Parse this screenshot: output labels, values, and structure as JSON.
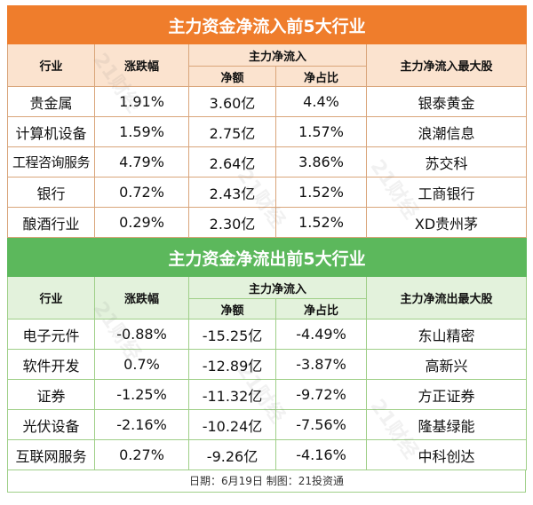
{
  "inflow": {
    "title": "主力资金净流入前5大行业",
    "headers": {
      "industry": "行业",
      "change": "涨跌幅",
      "group": "主力净流入",
      "net": "净额",
      "ratio": "净占比",
      "top_stock": "主力净流入最大股"
    },
    "rows": [
      {
        "industry": "贵金属",
        "change": "1.91%",
        "net": "3.60亿",
        "ratio": "4.4%",
        "stock": "银泰黄金"
      },
      {
        "industry": "计算机设备",
        "change": "1.59%",
        "net": "2.75亿",
        "ratio": "1.57%",
        "stock": "浪潮信息"
      },
      {
        "industry": "工程咨询服务",
        "change": "4.79%",
        "net": "2.64亿",
        "ratio": "3.86%",
        "stock": "苏交科"
      },
      {
        "industry": "银行",
        "change": "0.72%",
        "net": "2.43亿",
        "ratio": "1.52%",
        "stock": "工商银行"
      },
      {
        "industry": "酿酒行业",
        "change": "0.29%",
        "net": "2.30亿",
        "ratio": "1.52%",
        "stock": "XD贵州茅"
      }
    ]
  },
  "outflow": {
    "title": "主力资金净流出前5大行业",
    "headers": {
      "industry": "行业",
      "change": "涨跌幅",
      "group": "主力净流入",
      "net": "净额",
      "ratio": "净占比",
      "top_stock": "主力净流出最大股"
    },
    "rows": [
      {
        "industry": "电子元件",
        "change": "-0.88%",
        "net": "-15.25亿",
        "ratio": "-4.49%",
        "stock": "东山精密"
      },
      {
        "industry": "软件开发",
        "change": "0.7%",
        "net": "-12.89亿",
        "ratio": "-3.87%",
        "stock": "高新兴"
      },
      {
        "industry": "证券",
        "change": "-1.25%",
        "net": "-11.32亿",
        "ratio": "-9.72%",
        "stock": "方正证券"
      },
      {
        "industry": "光伏设备",
        "change": "-2.16%",
        "net": "-10.24亿",
        "ratio": "-7.56%",
        "stock": "隆基绿能"
      },
      {
        "industry": "互联网服务",
        "change": "0.27%",
        "net": "-9.26亿",
        "ratio": "-4.16%",
        "stock": "中科创达"
      }
    ]
  },
  "footer": "日期：6月19日 制图：21投资通",
  "watermark": "21财经",
  "colors": {
    "inflow_header": "#ef7d2c",
    "outflow_header": "#5cb85c"
  }
}
